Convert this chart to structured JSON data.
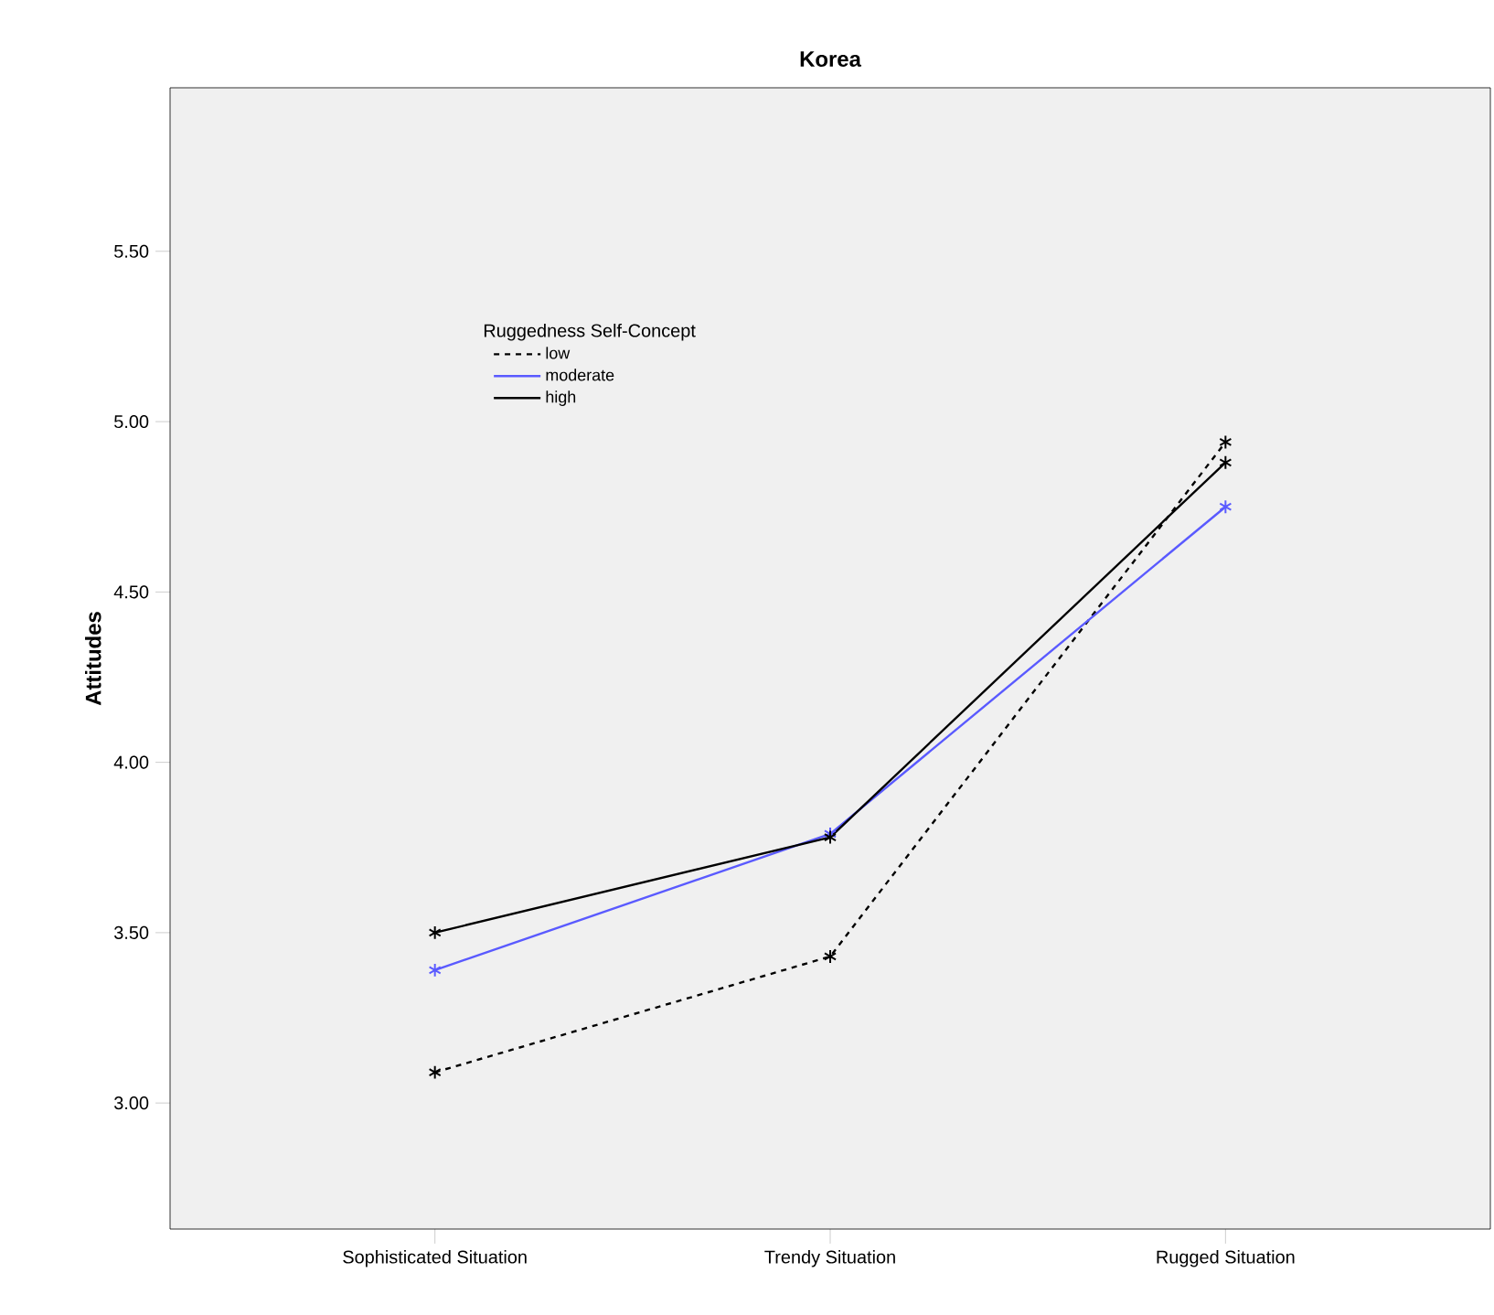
{
  "chart_data": {
    "type": "line",
    "title": "Korea",
    "ylabel": "Attitudes",
    "legend_title": "Ruggedness Self-Concept",
    "categories": [
      "Sophisticated Situation",
      "Trendy Situation",
      "Rugged Situation"
    ],
    "series": [
      {
        "name": "low",
        "color": "#000000",
        "line_style": "dashed",
        "values": [
          3.09,
          3.43,
          4.94
        ]
      },
      {
        "name": "moderate",
        "color": "#5a5aff",
        "line_style": "solid",
        "values": [
          3.39,
          3.79,
          4.75
        ]
      },
      {
        "name": "high",
        "color": "#000000",
        "line_style": "solid",
        "values": [
          3.5,
          3.78,
          4.88
        ]
      }
    ],
    "ylim": [
      2.63,
      5.98
    ],
    "yticks": [
      {
        "value": 3.0,
        "label": "3.00"
      },
      {
        "value": 3.5,
        "label": "3.50"
      },
      {
        "value": 4.0,
        "label": "4.00"
      },
      {
        "value": 4.5,
        "label": "4.50"
      },
      {
        "value": 5.0,
        "label": "5.00"
      },
      {
        "value": 5.5,
        "label": "5.50"
      }
    ],
    "marker": "cross",
    "legend": "top left",
    "grid": false
  }
}
